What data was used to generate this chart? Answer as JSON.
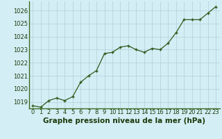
{
  "x": [
    0,
    1,
    2,
    3,
    4,
    5,
    6,
    7,
    8,
    9,
    10,
    11,
    12,
    13,
    14,
    15,
    16,
    17,
    18,
    19,
    20,
    21,
    22,
    23
  ],
  "y": [
    1018.7,
    1018.6,
    1019.1,
    1019.3,
    1019.1,
    1019.4,
    1020.5,
    1021.0,
    1021.4,
    1022.7,
    1022.8,
    1023.2,
    1023.3,
    1023.0,
    1022.8,
    1023.1,
    1023.0,
    1023.5,
    1024.3,
    1025.3,
    1025.3,
    1025.3,
    1025.8,
    1026.3
  ],
  "line_color": "#2d5a1b",
  "marker_color": "#2d5a1b",
  "bg_color": "#d4eef5",
  "grid_color": "#b0cfd8",
  "xlabel": "Graphe pression niveau de la mer (hPa)",
  "xlabel_color": "#1a3a0a",
  "spine_color": "#3a6b20",
  "ylim_min": 1018.5,
  "ylim_max": 1026.7,
  "yticks": [
    1019,
    1020,
    1021,
    1022,
    1023,
    1024,
    1025,
    1026
  ],
  "tick_fontsize": 6.0,
  "xlabel_fontsize": 7.5
}
